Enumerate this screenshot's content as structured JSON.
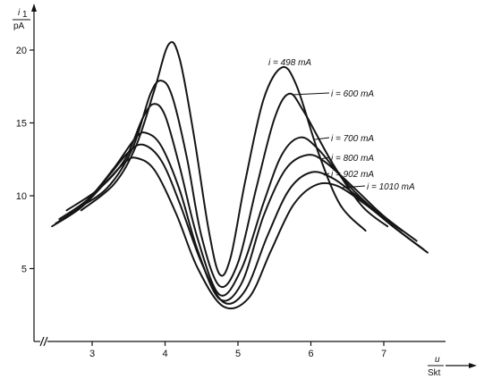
{
  "chart_data": {
    "type": "line",
    "y_axis": {
      "unit_top": "i",
      "unit_top_sub": "1",
      "unit_bottom": "pA",
      "ticks": [
        "5",
        "10",
        "15",
        "20"
      ],
      "ylim": [
        0,
        22
      ]
    },
    "x_axis": {
      "unit_top": "u",
      "unit_bottom": "Skt",
      "ticks": [
        "3",
        "4",
        "5",
        "6",
        "7"
      ],
      "xlim": [
        2.4,
        7.7
      ]
    },
    "grid": false,
    "legend": "inline labels near curve peaks",
    "series": [
      {
        "name": "i = 498 mA",
        "points": [
          [
            2.85,
            9.0
          ],
          [
            3.3,
            10.8
          ],
          [
            3.6,
            13.4
          ],
          [
            3.85,
            17.2
          ],
          [
            4.05,
            20.4
          ],
          [
            4.2,
            19.4
          ],
          [
            4.4,
            14.0
          ],
          [
            4.6,
            7.6
          ],
          [
            4.75,
            4.6
          ],
          [
            4.9,
            5.8
          ],
          [
            5.1,
            11.0
          ],
          [
            5.35,
            16.6
          ],
          [
            5.6,
            18.8
          ],
          [
            5.8,
            17.6
          ],
          [
            6.1,
            13.0
          ],
          [
            6.4,
            9.4
          ],
          [
            6.75,
            7.6
          ]
        ]
      },
      {
        "name": "i = 600 mA",
        "points": [
          [
            2.75,
            9.0
          ],
          [
            3.2,
            10.5
          ],
          [
            3.55,
            13.2
          ],
          [
            3.8,
            17.0
          ],
          [
            3.95,
            17.9
          ],
          [
            4.1,
            16.8
          ],
          [
            4.3,
            12.6
          ],
          [
            4.5,
            7.2
          ],
          [
            4.75,
            3.8
          ],
          [
            5.0,
            5.4
          ],
          [
            5.25,
            10.5
          ],
          [
            5.5,
            15.3
          ],
          [
            5.7,
            17.0
          ],
          [
            5.9,
            15.8
          ],
          [
            6.3,
            12.2
          ],
          [
            6.7,
            9.3
          ],
          [
            7.05,
            7.9
          ]
        ]
      },
      {
        "name": "i = 700 mA",
        "points": [
          [
            2.65,
            9.0
          ],
          [
            3.1,
            10.5
          ],
          [
            3.45,
            12.5
          ],
          [
            3.7,
            15.4
          ],
          [
            3.85,
            16.3
          ],
          [
            4.0,
            15.5
          ],
          [
            4.2,
            12.0
          ],
          [
            4.45,
            7.0
          ],
          [
            4.75,
            3.2
          ],
          [
            5.05,
            5.0
          ],
          [
            5.35,
            9.5
          ],
          [
            5.6,
            12.8
          ],
          [
            5.85,
            14.0
          ],
          [
            6.1,
            13.2
          ],
          [
            6.5,
            10.8
          ],
          [
            6.9,
            8.9
          ],
          [
            7.25,
            7.6
          ]
        ]
      },
      {
        "name": "i = 800 mA",
        "points": [
          [
            2.55,
            8.4
          ],
          [
            2.95,
            9.8
          ],
          [
            3.3,
            11.9
          ],
          [
            3.6,
            14.0
          ],
          [
            3.75,
            14.3
          ],
          [
            3.95,
            13.4
          ],
          [
            4.2,
            10.4
          ],
          [
            4.45,
            6.2
          ],
          [
            4.75,
            2.9
          ],
          [
            5.05,
            4.0
          ],
          [
            5.35,
            8.6
          ],
          [
            5.65,
            11.8
          ],
          [
            5.95,
            12.8
          ],
          [
            6.2,
            12.3
          ],
          [
            6.6,
            10.5
          ],
          [
            7.0,
            8.6
          ],
          [
            7.45,
            6.9
          ]
        ]
      },
      {
        "name": "i = 902 mA",
        "points": [
          [
            2.5,
            8.1
          ],
          [
            2.9,
            9.5
          ],
          [
            3.25,
            11.5
          ],
          [
            3.5,
            13.0
          ],
          [
            3.7,
            13.5
          ],
          [
            3.95,
            12.4
          ],
          [
            4.2,
            9.5
          ],
          [
            4.5,
            5.4
          ],
          [
            4.8,
            2.7
          ],
          [
            5.1,
            3.5
          ],
          [
            5.4,
            7.2
          ],
          [
            5.7,
            10.4
          ],
          [
            6.0,
            11.6
          ],
          [
            6.3,
            11.2
          ],
          [
            6.7,
            9.7
          ],
          [
            7.1,
            8.0
          ],
          [
            7.55,
            6.3
          ]
        ]
      },
      {
        "name": "i = 1010 mA",
        "points": [
          [
            2.45,
            7.9
          ],
          [
            2.85,
            9.2
          ],
          [
            3.2,
            11.0
          ],
          [
            3.45,
            12.3
          ],
          [
            3.6,
            12.6
          ],
          [
            3.85,
            11.8
          ],
          [
            4.15,
            8.8
          ],
          [
            4.45,
            5.0
          ],
          [
            4.8,
            2.4
          ],
          [
            5.15,
            3.0
          ],
          [
            5.45,
            6.2
          ],
          [
            5.75,
            9.3
          ],
          [
            6.05,
            10.7
          ],
          [
            6.35,
            10.7
          ],
          [
            6.75,
            9.4
          ],
          [
            7.15,
            7.8
          ],
          [
            7.6,
            6.1
          ]
        ]
      }
    ]
  }
}
